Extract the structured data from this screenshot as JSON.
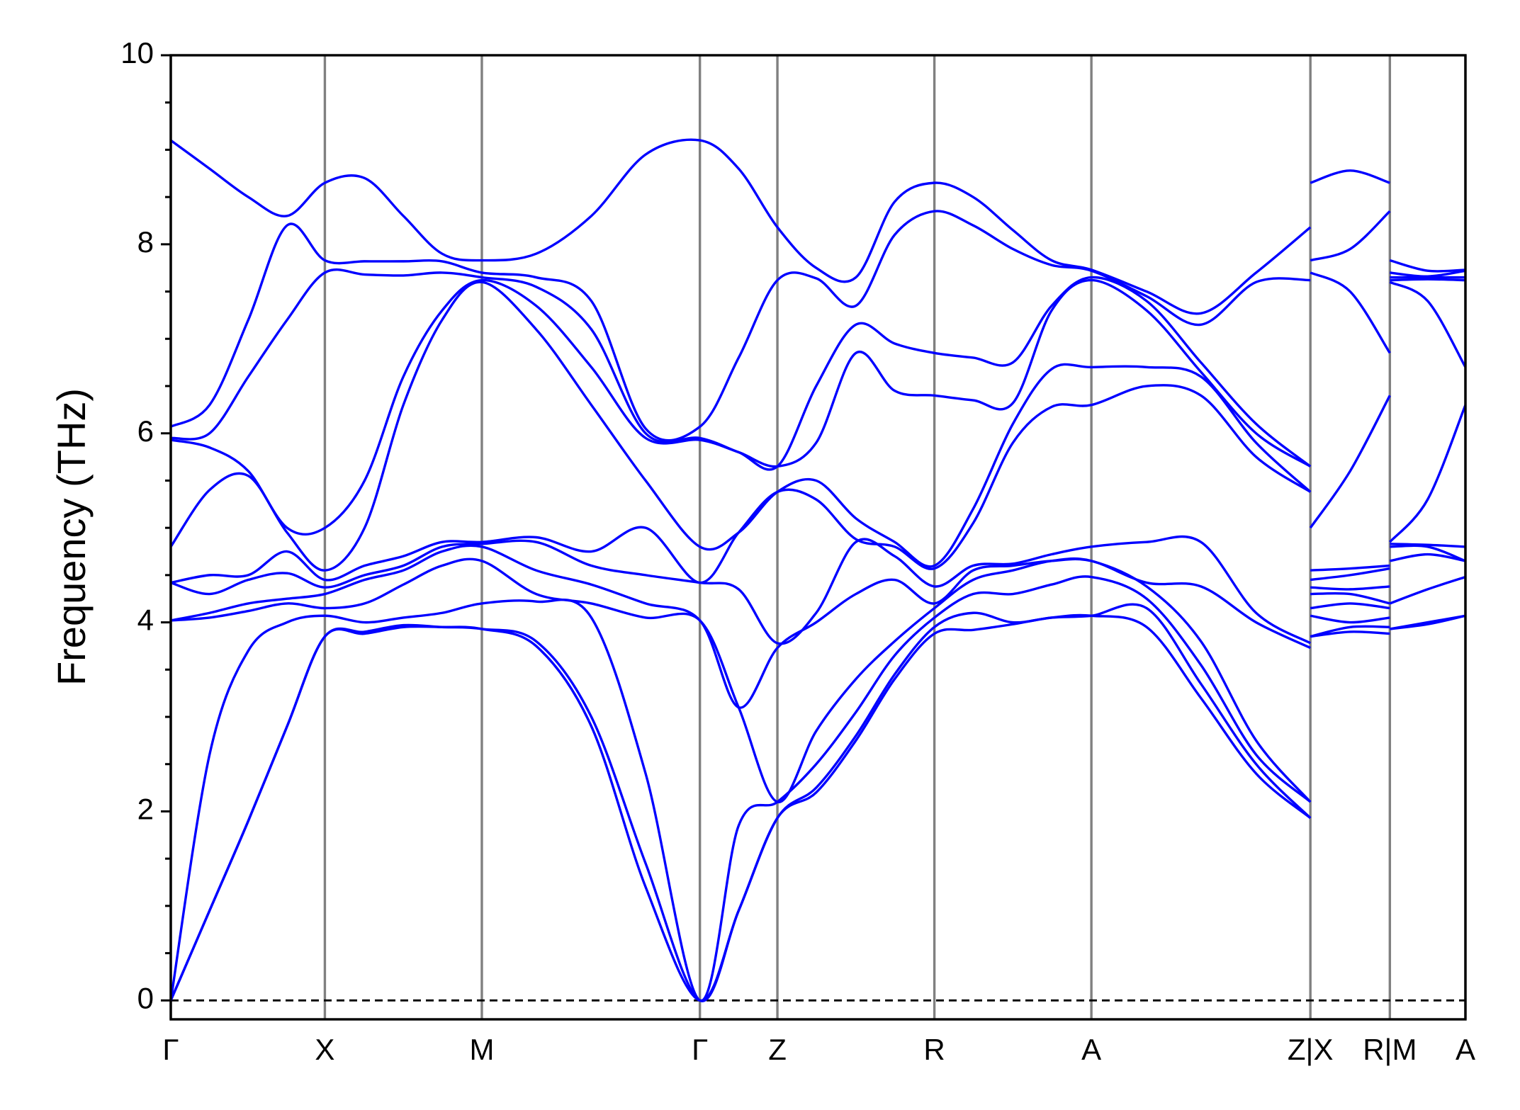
{
  "chart_data": {
    "type": "line",
    "y_label": "Frequency (THz)",
    "color": "#0000ff",
    "xlim": [
      0,
      13.36
    ],
    "ylim": [
      -0.2,
      10
    ],
    "xticks": [
      {
        "value": 0,
        "label": "Γ"
      },
      {
        "value": 1.59,
        "label": "X"
      },
      {
        "value": 3.21,
        "label": "M"
      },
      {
        "value": 5.46,
        "label": "Γ"
      },
      {
        "value": 6.26,
        "label": "Z"
      },
      {
        "value": 7.88,
        "label": "R"
      },
      {
        "value": 9.5,
        "label": "A"
      },
      {
        "value": 11.76,
        "label": "Z|X"
      },
      {
        "value": 12.58,
        "label": "R|M"
      },
      {
        "value": 13.36,
        "label": "A"
      }
    ],
    "yticks": [
      0,
      2,
      4,
      6,
      8,
      10
    ],
    "yminorticks": [
      0.5,
      1,
      1.5,
      2.5,
      3,
      3.5,
      4.5,
      5,
      5.5,
      6.5,
      7,
      7.5,
      8.5,
      9,
      9.5
    ],
    "grid": true,
    "hline": {
      "value": 0,
      "style": "dashed"
    },
    "x": [
      0,
      0.4,
      0.8,
      1.2,
      1.59,
      2.0,
      2.4,
      2.8,
      3.21,
      3.77,
      4.34,
      4.9,
      5.46,
      5.86,
      6.26,
      6.66,
      7.07,
      7.47,
      7.88,
      8.28,
      8.69,
      9.09,
      9.5,
      10.07,
      10.63,
      11.2,
      11.76,
      11.76,
      11.76,
      12.17,
      12.58,
      12.58,
      12.58,
      12.97,
      13.36
    ],
    "series": [
      {
        "values": [
          0,
          0.95,
          1.9,
          2.9,
          3.85,
          3.88,
          3.95,
          3.95,
          3.93,
          3.75,
          2.9,
          1.2,
          0,
          0.95,
          1.93,
          2.2,
          2.75,
          3.4,
          3.88,
          3.92,
          3.98,
          4.05,
          4.07,
          3.95,
          3.2,
          2.4,
          1.93,
          null,
          3.85,
          3.9,
          3.88,
          null,
          3.93,
          3.98,
          4.07
        ]
      },
      {
        "values": [
          0,
          0.95,
          1.9,
          2.9,
          3.85,
          3.9,
          3.97,
          3.95,
          3.93,
          3.8,
          3.0,
          1.45,
          0,
          0.95,
          1.93,
          2.25,
          2.8,
          3.45,
          3.95,
          4.1,
          4.0,
          4.05,
          4.07,
          4.15,
          3.35,
          2.5,
          1.93,
          null,
          3.85,
          3.95,
          3.95,
          null,
          3.93,
          4.0,
          4.07
        ]
      },
      {
        "values": [
          0,
          2.6,
          3.7,
          4.0,
          4.07,
          4.0,
          4.05,
          4.1,
          4.2,
          4.22,
          4.05,
          2.4,
          0,
          1.85,
          2.1,
          2.5,
          3.05,
          3.65,
          4.05,
          4.3,
          4.3,
          4.4,
          4.48,
          4.25,
          3.55,
          2.6,
          2.1,
          null,
          4.07,
          4.0,
          4.05,
          null,
          4.2,
          4.35,
          4.48
        ]
      },
      {
        "values": [
          4.02,
          4.05,
          4.12,
          4.2,
          4.15,
          4.2,
          4.4,
          4.6,
          4.65,
          4.3,
          4.2,
          4.05,
          4.02,
          3.1,
          2.1,
          2.85,
          3.4,
          3.8,
          4.15,
          4.45,
          4.55,
          4.65,
          4.65,
          4.38,
          3.8,
          2.75,
          2.1,
          null,
          4.15,
          4.2,
          4.15,
          null,
          4.65,
          4.72,
          4.65
        ]
      },
      {
        "values": [
          4.02,
          4.1,
          4.2,
          4.25,
          4.3,
          4.45,
          4.55,
          4.75,
          4.8,
          4.55,
          4.4,
          4.2,
          4.02,
          3.1,
          3.73,
          4.0,
          4.3,
          4.45,
          4.2,
          4.55,
          4.6,
          4.65,
          4.65,
          4.42,
          4.38,
          4.0,
          3.73,
          null,
          4.3,
          4.3,
          4.2,
          null,
          4.8,
          4.8,
          4.65
        ]
      },
      {
        "values": [
          4.42,
          4.3,
          4.45,
          4.52,
          4.37,
          4.5,
          4.6,
          4.8,
          4.83,
          4.85,
          4.6,
          4.5,
          4.42,
          4.35,
          3.78,
          4.1,
          4.85,
          4.7,
          4.38,
          4.6,
          4.62,
          4.72,
          4.8,
          4.85,
          4.85,
          4.1,
          3.78,
          null,
          4.37,
          4.35,
          4.38,
          null,
          4.83,
          4.82,
          4.8
        ]
      },
      {
        "values": [
          4.42,
          4.5,
          4.5,
          4.75,
          4.45,
          4.6,
          4.7,
          4.85,
          4.85,
          4.9,
          4.75,
          5.0,
          4.42,
          4.95,
          5.38,
          5.3,
          4.88,
          4.8,
          4.57,
          5.05,
          5.9,
          6.28,
          6.3,
          6.5,
          6.4,
          5.75,
          5.38,
          null,
          4.45,
          4.5,
          4.57,
          null,
          4.85,
          5.3,
          6.3
        ]
      },
      {
        "values": [
          4.8,
          5.4,
          5.55,
          4.95,
          4.55,
          5.0,
          6.3,
          7.2,
          7.6,
          7.1,
          6.3,
          5.5,
          4.8,
          4.95,
          5.38,
          5.5,
          5.1,
          4.85,
          4.6,
          5.2,
          6.1,
          6.68,
          6.7,
          6.7,
          6.6,
          5.9,
          5.38,
          null,
          4.55,
          4.57,
          4.6,
          null,
          7.6,
          7.4,
          6.7
        ]
      },
      {
        "values": [
          5.93,
          5.85,
          5.6,
          5.0,
          5.0,
          5.5,
          6.6,
          7.3,
          7.62,
          7.35,
          6.7,
          5.95,
          5.93,
          5.8,
          5.65,
          5.9,
          6.85,
          6.45,
          6.4,
          6.35,
          6.32,
          7.3,
          7.62,
          7.3,
          6.65,
          6.0,
          5.65,
          null,
          5.0,
          5.6,
          6.4,
          null,
          7.62,
          7.63,
          7.62
        ]
      },
      {
        "values": [
          5.95,
          6.0,
          6.6,
          7.2,
          7.7,
          7.68,
          7.67,
          7.7,
          7.65,
          7.55,
          7.1,
          6.0,
          5.95,
          5.8,
          5.65,
          6.5,
          7.15,
          6.95,
          6.85,
          6.8,
          6.75,
          7.35,
          7.65,
          7.4,
          6.75,
          6.1,
          5.65,
          null,
          7.7,
          7.5,
          6.85,
          null,
          7.65,
          7.65,
          7.65
        ]
      },
      {
        "values": [
          6.07,
          6.3,
          7.2,
          8.2,
          7.83,
          7.82,
          7.82,
          7.82,
          7.7,
          7.65,
          7.4,
          6.05,
          6.07,
          6.8,
          7.62,
          7.64,
          7.35,
          8.1,
          8.35,
          8.2,
          7.95,
          7.78,
          7.72,
          7.45,
          7.15,
          7.6,
          7.62,
          null,
          7.83,
          7.95,
          8.35,
          null,
          7.7,
          7.66,
          7.72
        ]
      },
      {
        "values": [
          9.1,
          8.8,
          8.5,
          8.3,
          8.65,
          8.7,
          8.3,
          7.9,
          7.83,
          7.9,
          8.3,
          8.95,
          9.1,
          8.8,
          8.18,
          7.75,
          7.65,
          8.45,
          8.65,
          8.5,
          8.15,
          7.83,
          7.73,
          7.5,
          7.27,
          7.7,
          8.18,
          null,
          8.65,
          8.78,
          8.65,
          null,
          7.83,
          7.72,
          7.73
        ]
      }
    ]
  }
}
